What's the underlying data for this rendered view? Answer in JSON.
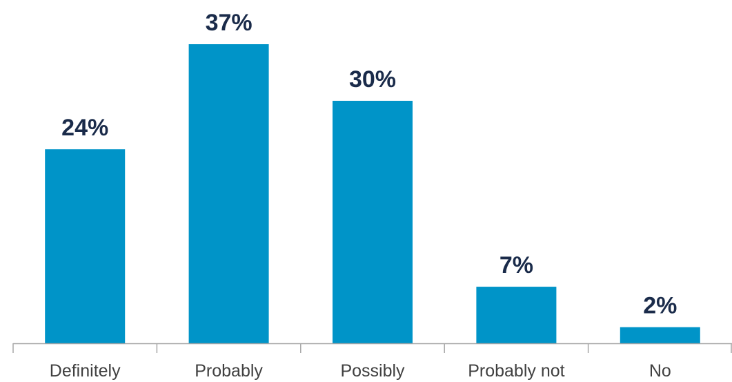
{
  "chart_data": {
    "type": "bar",
    "categories": [
      "Definitely",
      "Probably",
      "Possibly",
      "Probably not",
      "No"
    ],
    "values": [
      24,
      37,
      30,
      7,
      2
    ],
    "data_labels": [
      "24%",
      "37%",
      "30%",
      "7%",
      "2%"
    ],
    "unit": "%",
    "ylim": [
      0,
      37
    ],
    "grid": false,
    "legend": "none",
    "colors": {
      "bar": "#0094c8",
      "data_label": "#1a2b4a",
      "tick_label": "#404040",
      "axis": "#a6a6a6"
    }
  }
}
